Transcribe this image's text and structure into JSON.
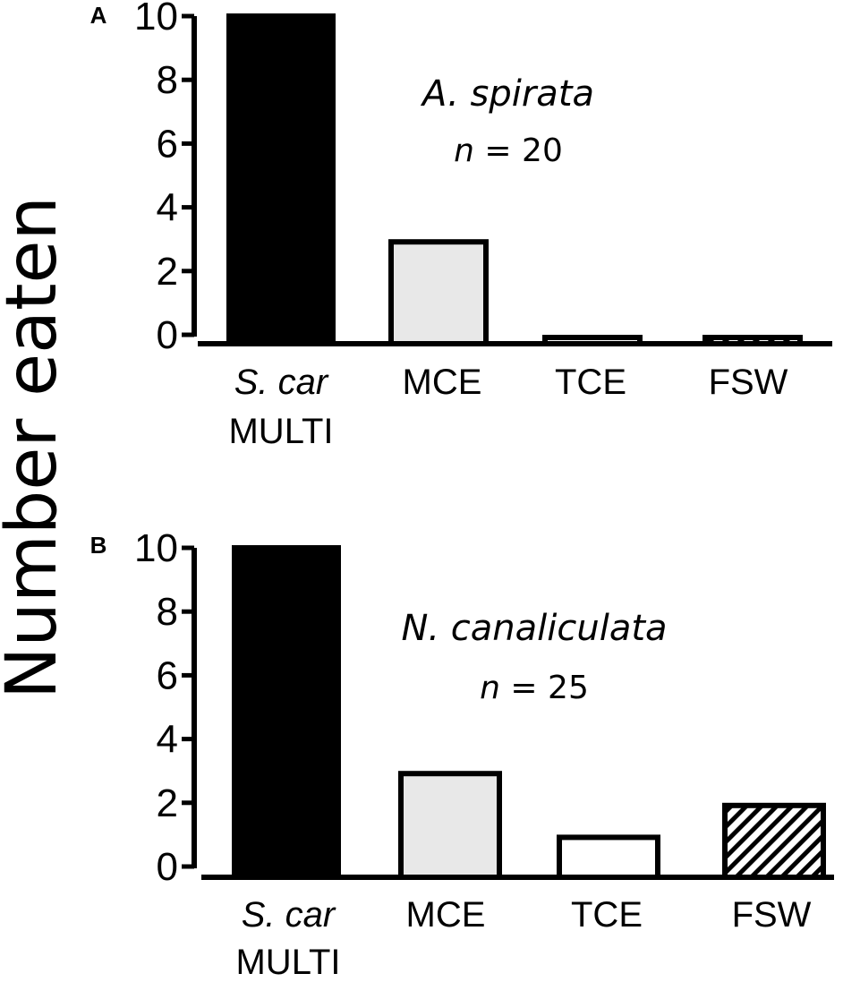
{
  "ylabel": "Number eaten",
  "colors": {
    "S. car MULTI": "#000000",
    "MCE": "#e8e8e8",
    "TCE": "#ffffff",
    "FSW": "hatched"
  },
  "chart_data": [
    {
      "type": "bar",
      "panel": "A",
      "species": "A. spirata",
      "n_label": "n",
      "n_value": "= 20",
      "categories": [
        {
          "line1": "S. car",
          "line2": "MULTI"
        },
        {
          "line1": "MCE",
          "line2": ""
        },
        {
          "line1": "TCE",
          "line2": ""
        },
        {
          "line1": "FSW",
          "line2": ""
        }
      ],
      "values": [
        10,
        3,
        0,
        0
      ],
      "ylim": [
        0,
        10
      ],
      "yticks": [
        "0",
        "2",
        "4",
        "6",
        "8",
        "10"
      ],
      "xlabel": "",
      "ylabel": "Number eaten"
    },
    {
      "type": "bar",
      "panel": "B",
      "species": "N. canaliculata",
      "n_label": "n",
      "n_value": "= 25",
      "categories": [
        {
          "line1": "S. car",
          "line2": "MULTI"
        },
        {
          "line1": "MCE",
          "line2": ""
        },
        {
          "line1": "TCE",
          "line2": ""
        },
        {
          "line1": "FSW",
          "line2": ""
        }
      ],
      "values": [
        10,
        3,
        1,
        2
      ],
      "ylim": [
        0,
        10
      ],
      "yticks": [
        "0",
        "2",
        "4",
        "6",
        "8",
        "10"
      ],
      "xlabel": "",
      "ylabel": "Number eaten"
    }
  ]
}
